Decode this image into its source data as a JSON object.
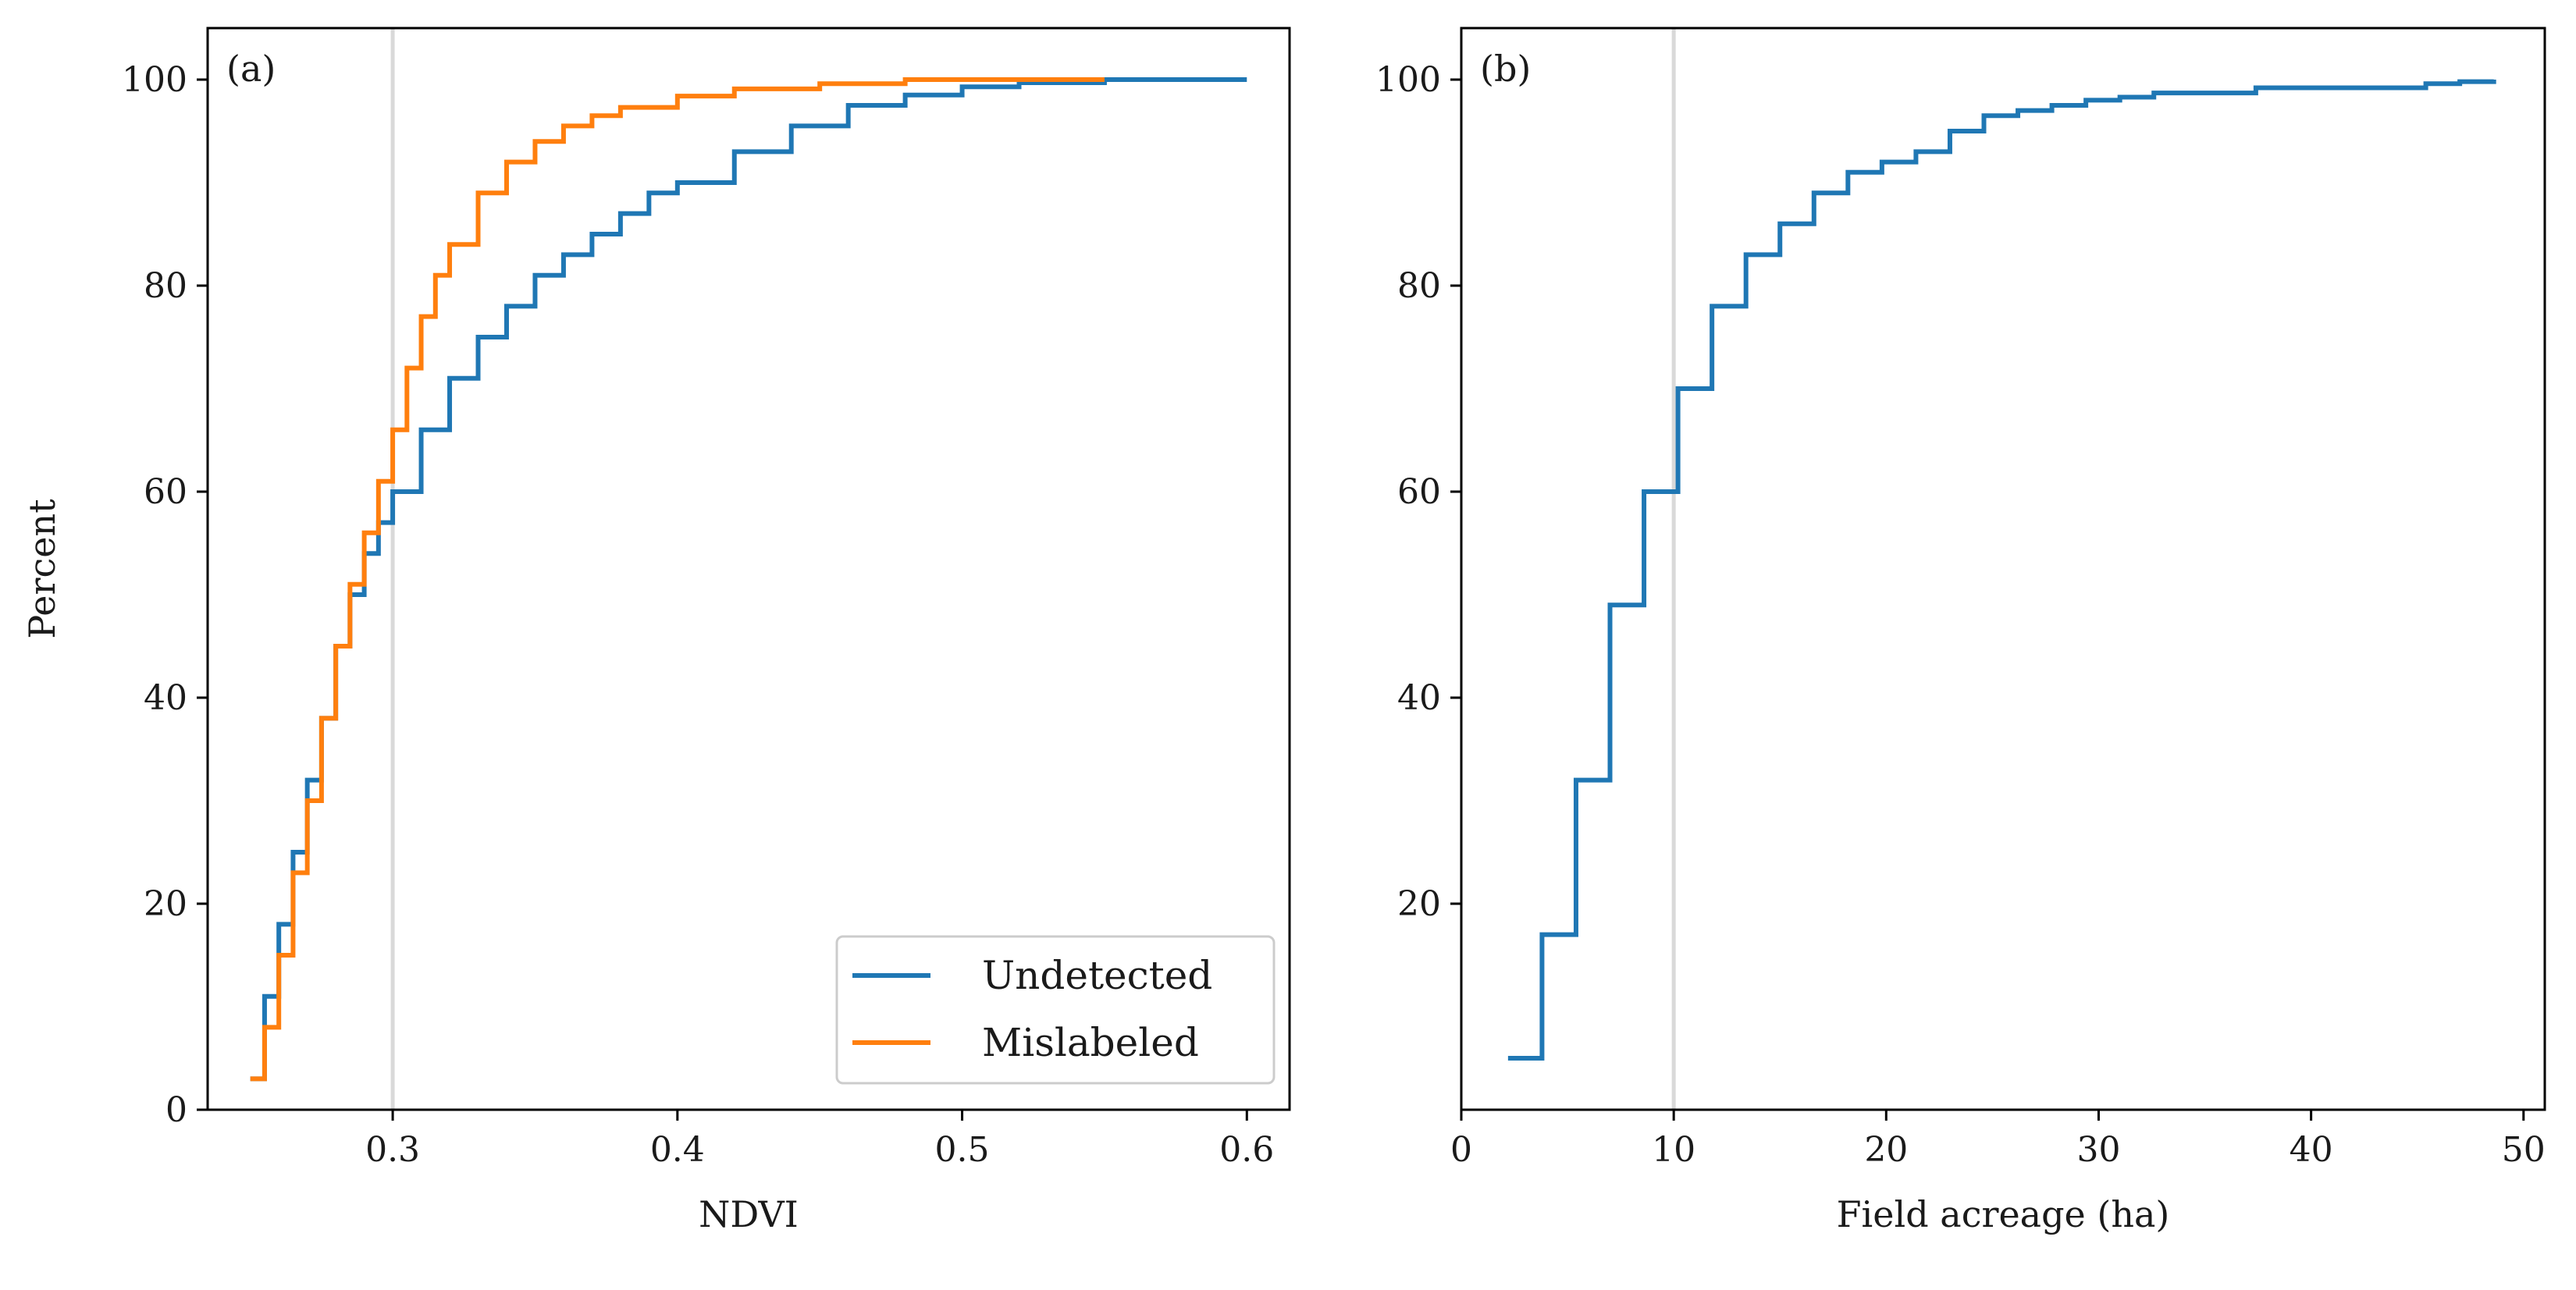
{
  "chart_data": [
    {
      "panel_label": "(a)",
      "type": "line",
      "xlabel": "NDVI",
      "ylabel": "Percent",
      "xlim": [
        0.235,
        0.615
      ],
      "ylim": [
        0,
        105
      ],
      "xticks": [
        0.3,
        0.4,
        0.5,
        0.6
      ],
      "xtick_labels": [
        "0.3",
        "0.4",
        "0.5",
        "0.6"
      ],
      "yticks": [
        0,
        20,
        40,
        60,
        80,
        100
      ],
      "ytick_labels": [
        "0",
        "20",
        "40",
        "60",
        "80",
        "100"
      ],
      "reference_line_x": 0.3,
      "legend_position": "lower-right",
      "grid": false,
      "series": [
        {
          "name": "Undetected",
          "color": "#1f77b4",
          "x": [
            0.25,
            0.255,
            0.26,
            0.265,
            0.27,
            0.275,
            0.28,
            0.285,
            0.29,
            0.295,
            0.3,
            0.31,
            0.32,
            0.33,
            0.34,
            0.35,
            0.36,
            0.37,
            0.38,
            0.39,
            0.4,
            0.42,
            0.44,
            0.46,
            0.48,
            0.5,
            0.52,
            0.55,
            0.6
          ],
          "y": [
            3,
            11,
            18,
            25,
            32,
            38,
            45,
            50,
            54,
            57,
            60,
            66,
            71,
            75,
            78,
            81,
            83,
            85,
            87,
            89,
            90,
            93,
            95.5,
            97.5,
            98.5,
            99.3,
            99.7,
            100,
            100
          ]
        },
        {
          "name": "Mislabeled",
          "color": "#ff7f0e",
          "x": [
            0.25,
            0.255,
            0.26,
            0.265,
            0.27,
            0.275,
            0.28,
            0.285,
            0.29,
            0.295,
            0.3,
            0.305,
            0.31,
            0.315,
            0.32,
            0.33,
            0.34,
            0.35,
            0.36,
            0.37,
            0.38,
            0.4,
            0.42,
            0.45,
            0.48,
            0.5,
            0.55
          ],
          "y": [
            3,
            8,
            15,
            23,
            30,
            38,
            45,
            51,
            56,
            61,
            66,
            72,
            77,
            81,
            84,
            89,
            92,
            94,
            95.5,
            96.5,
            97.3,
            98.4,
            99.1,
            99.6,
            100,
            100,
            100
          ]
        }
      ]
    },
    {
      "panel_label": "(b)",
      "type": "line",
      "xlabel": "Field acreage (ha)",
      "ylabel": "",
      "xlim": [
        0,
        51
      ],
      "ylim": [
        0,
        105
      ],
      "xticks": [
        0,
        10,
        20,
        30,
        40,
        50
      ],
      "xtick_labels": [
        "0",
        "10",
        "20",
        "30",
        "40",
        "50"
      ],
      "yticks": [
        20,
        40,
        60,
        80,
        100
      ],
      "ytick_labels": [
        "20",
        "40",
        "60",
        "80",
        "100"
      ],
      "reference_line_x": 10,
      "grid": false,
      "series": [
        {
          "name": "",
          "color": "#1f77b4",
          "x": [
            2.2,
            3.8,
            5.4,
            7.0,
            8.6,
            10.2,
            11.8,
            13.4,
            15.0,
            16.6,
            18.2,
            19.8,
            21.4,
            23.0,
            24.6,
            26.2,
            27.8,
            29.4,
            31.0,
            32.6,
            37.4,
            45.4,
            47.0,
            48.6
          ],
          "y": [
            5,
            17,
            32,
            49,
            60,
            70,
            78,
            83,
            86,
            89,
            91,
            92,
            93,
            95,
            96.5,
            97,
            97.5,
            98,
            98.3,
            98.7,
            99.2,
            99.6,
            99.8,
            100
          ]
        }
      ]
    }
  ]
}
